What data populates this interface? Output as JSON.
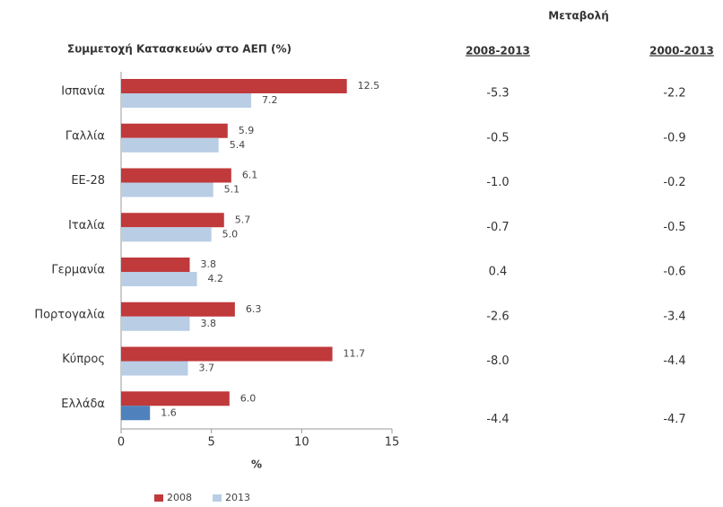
{
  "chart_data": {
    "type": "barh",
    "title": "Συμμετοχή Κατασκευών στο ΑΕΠ (%)",
    "x_label": "%",
    "categories": [
      "Ισπανία",
      "Γαλλία",
      "ΕΕ-28",
      "Ιταλία",
      "Γερμανία",
      "Πορτογαλία",
      "Κύπρος",
      "Ελλάδα"
    ],
    "series": [
      {
        "name": "2008",
        "color": "#c0393b",
        "values": [
          12.5,
          5.9,
          6.1,
          5.7,
          3.8,
          6.3,
          11.7,
          6.0
        ],
        "value_labels": [
          "12.5",
          "5.9",
          "6.1",
          "5.7",
          "3.8",
          "6.3",
          "11.7",
          "6.0"
        ]
      },
      {
        "name": "2013",
        "color": "#b9cde5",
        "colors": [
          "#b9cde5",
          "#b9cde5",
          "#b9cde5",
          "#b9cde5",
          "#b9cde5",
          "#b9cde5",
          "#b9cde5",
          "#4f81bd"
        ],
        "values": [
          7.2,
          5.4,
          5.1,
          5.0,
          4.2,
          3.8,
          3.7,
          1.6
        ],
        "value_labels": [
          "7.2",
          "5.4",
          "5.1",
          "5.0",
          "4.2",
          "3.8",
          "3.7",
          "1.6"
        ]
      }
    ],
    "xlim": [
      0,
      15
    ],
    "xticks": [
      0,
      5,
      10,
      15
    ],
    "legend": "bottom-left",
    "table": {
      "title": "Μεταβολή",
      "columns": [
        "2008-2013",
        "2000-2013"
      ],
      "rows": [
        [
          "-5.3",
          "-2.2"
        ],
        [
          "-0.5",
          "-0.9"
        ],
        [
          "-1.0",
          "-0.2"
        ],
        [
          "-0.7",
          "-0.5"
        ],
        [
          "0.4",
          "-0.6"
        ],
        [
          "-2.6",
          "-3.4"
        ],
        [
          "-8.0",
          "-4.4"
        ],
        [
          "-4.4",
          "-4.7"
        ]
      ]
    }
  }
}
